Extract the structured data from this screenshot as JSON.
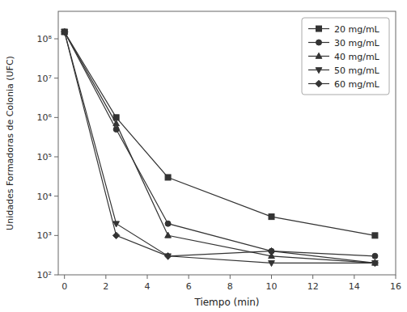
{
  "chart_data": {
    "type": "line",
    "xlabel": "Tiempo (min)",
    "ylabel": "Unidades Formadoras de Colonia (UFC)",
    "x": [
      0,
      2.5,
      5,
      10,
      15
    ],
    "series": [
      {
        "name": "20 mg/mL",
        "color": "#333333",
        "marker": "square",
        "values": [
          150000000.0,
          1000000.0,
          30000.0,
          3000.0,
          1000.0
        ]
      },
      {
        "name": "30 mg/mL",
        "color": "#333333",
        "marker": "circle",
        "values": [
          150000000.0,
          500000.0,
          2000.0,
          400.0,
          300.0
        ]
      },
      {
        "name": "40 mg/mL",
        "color": "#333333",
        "marker": "triangle-up",
        "values": [
          150000000.0,
          700000.0,
          1000.0,
          300.0,
          200.0
        ]
      },
      {
        "name": "50 mg/mL",
        "color": "#333333",
        "marker": "triangle-down",
        "values": [
          150000000.0,
          2000.0,
          300.0,
          200.0,
          200.0
        ]
      },
      {
        "name": "60 mg/mL",
        "color": "#333333",
        "marker": "diamond",
        "values": [
          150000000.0,
          1000.0,
          300.0,
          400.0,
          200.0
        ]
      }
    ],
    "xlim": [
      -0.3,
      16
    ],
    "xticks": [
      0,
      2,
      4,
      6,
      8,
      10,
      12,
      14,
      16
    ],
    "ylim": [
      100,
      500000000
    ],
    "yticks": [
      {
        "value": 100,
        "label": "10²"
      },
      {
        "value": 1000,
        "label": "10³"
      },
      {
        "value": 10000,
        "label": "10⁴"
      },
      {
        "value": 100000,
        "label": "10⁵"
      },
      {
        "value": 1000000,
        "label": "10⁶"
      },
      {
        "value": 10000000,
        "label": "10⁷"
      },
      {
        "value": 100000000,
        "label": "10⁸"
      }
    ],
    "log": "y",
    "grid": false,
    "legend": "upper right"
  }
}
